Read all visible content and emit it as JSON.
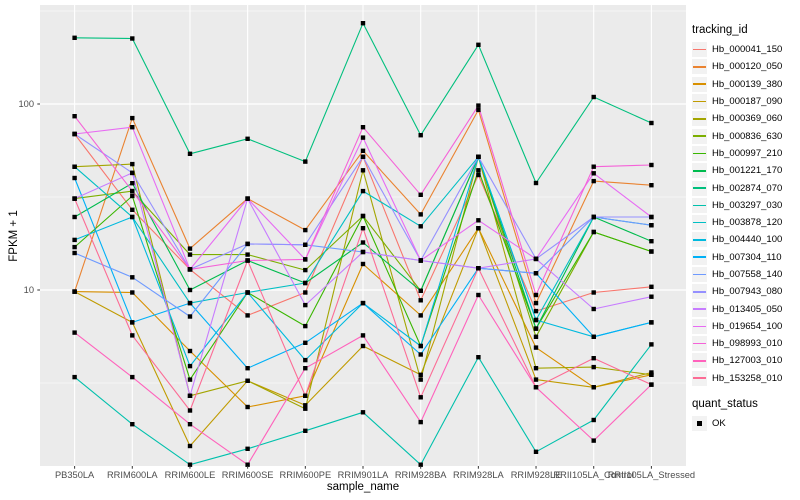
{
  "figure": {
    "x_axis_title": "sample_name",
    "y_axis_title": "FPKM + 1",
    "legend": {
      "color_title": "tracking_id",
      "shape_title": "quant_status",
      "shape_items": [
        {
          "label": "OK",
          "marker": "filled-black-square"
        }
      ]
    }
  },
  "style": {
    "background": "#FFFFFF",
    "panel_bg": "#EBEBEB",
    "grid_color": "#FFFFFF",
    "axis_text_color": "#4D4D4D",
    "tick_color": "#333333",
    "title_color": "#000000",
    "legend_key_bg": "#F2F2F2",
    "point_color": "#000000"
  },
  "chart_data": {
    "type": "line",
    "x_type": "categorical",
    "title": "",
    "xlabel": "sample_name",
    "ylabel": "FPKM + 1",
    "y_scale": "log10",
    "ylim": [
      1.1,
      340
    ],
    "y_ticks": [
      100,
      10
    ],
    "y_minor_gridlines": [
      316.2,
      31.62,
      3.162
    ],
    "grid": "on",
    "legend_position": "right",
    "point_marker": "filled-square-black",
    "categories": [
      "PB350LA",
      "RRIM600LA",
      "RRIM600LE",
      "RRIM600SE",
      "RRIM600PE",
      "RRIM901LA",
      "RRIM928BA",
      "RRIM928LA",
      "RRIM928LE",
      "RRII105LA_Control",
      "RRII105LA_Stressed"
    ],
    "series": [
      {
        "name": "Hb_000041_150",
        "color": "#F8766D",
        "values": [
          69,
          27,
          12.9,
          7.3,
          9.7,
          52,
          8.8,
          41.5,
          7.7,
          9.7,
          10.4
        ]
      },
      {
        "name": "Hb_000120_050",
        "color": "#EA8331",
        "values": [
          9.8,
          84,
          16.7,
          31,
          21,
          56,
          25.5,
          93,
          8.5,
          38.5,
          36.6
        ]
      },
      {
        "name": "Hb_000139_380",
        "color": "#D89000",
        "values": [
          9.8,
          9.7,
          4.7,
          2.35,
          2.7,
          13.8,
          7.3,
          21.5,
          4.9,
          3.0,
          3.5
        ]
      },
      {
        "name": "Hb_000187_090",
        "color": "#C09B00",
        "values": [
          9.8,
          6.7,
          1.45,
          3.25,
          2.4,
          5.0,
          3.5,
          21.5,
          3.3,
          3.0,
          3.6
        ]
      },
      {
        "name": "Hb_000369_060",
        "color": "#A3A500",
        "values": [
          46,
          47.5,
          2.7,
          3.25,
          2.3,
          44,
          3.3,
          52,
          3.8,
          3.85,
          3.5
        ]
      },
      {
        "name": "Hb_000836_630",
        "color": "#7CAE00",
        "values": [
          31,
          34,
          15.5,
          15.5,
          12.8,
          25,
          9.9,
          52,
          5.6,
          20.5,
          16.1
        ]
      },
      {
        "name": "Hb_000997_210",
        "color": "#39B600",
        "values": [
          17,
          32,
          3.3,
          9.7,
          6.4,
          25,
          5.0,
          44,
          6.2,
          20.5,
          16.1
        ]
      },
      {
        "name": "Hb_001221_170",
        "color": "#00BB4E",
        "values": [
          24.7,
          37.5,
          10,
          14.4,
          10.9,
          18,
          9.9,
          52,
          6.2,
          24.7,
          18.3
        ]
      },
      {
        "name": "Hb_002874_070",
        "color": "#00BF7D",
        "values": [
          227,
          225,
          54,
          65,
          49,
          272,
          68,
          208,
          37.6,
          109,
          79
        ]
      },
      {
        "name": "Hb_003297_030",
        "color": "#00C0AC",
        "values": [
          3.4,
          1.9,
          1.15,
          1.4,
          1.75,
          2.2,
          1.15,
          4.35,
          1.35,
          2.0,
          5.1
        ]
      },
      {
        "name": "Hb_003878_120",
        "color": "#00BFC4",
        "values": [
          46,
          24.7,
          8.5,
          9.7,
          10.9,
          34,
          22,
          52,
          6.9,
          24.7,
          22.3
        ]
      },
      {
        "name": "Hb_004440_100",
        "color": "#00BADE",
        "values": [
          18.6,
          24.7,
          3.9,
          9.7,
          4.2,
          8.5,
          5.0,
          52,
          6.9,
          5.6,
          6.7
        ]
      },
      {
        "name": "Hb_007304_110",
        "color": "#00B0F6",
        "values": [
          40,
          6.7,
          8.5,
          3.8,
          5.2,
          8.5,
          4.5,
          13.1,
          12.3,
          5.6,
          6.7
        ]
      },
      {
        "name": "Hb_007558_140",
        "color": "#6E9AFF",
        "values": [
          15.8,
          11.7,
          7.2,
          17.7,
          17.5,
          16,
          14.4,
          13.1,
          12.3,
          24.7,
          22.3
        ]
      },
      {
        "name": "Hb_007943_080",
        "color": "#9590FF",
        "values": [
          69,
          42.6,
          12.9,
          17.7,
          17.5,
          52,
          14.4,
          52,
          14.7,
          24.7,
          24.7
        ]
      },
      {
        "name": "Hb_013405_050",
        "color": "#C77CFF",
        "values": [
          31,
          42.6,
          2.7,
          31,
          8.3,
          16,
          14.4,
          13.1,
          14.7,
          7.9,
          9.2
        ]
      },
      {
        "name": "Hb_019654_100",
        "color": "#E76BF3",
        "values": [
          69,
          75,
          12.9,
          31,
          14.6,
          66,
          14.4,
          23.7,
          14.7,
          42.4,
          24.7
        ]
      },
      {
        "name": "Hb_098993_010",
        "color": "#F562D8",
        "values": [
          86,
          34,
          12.9,
          14.4,
          14.6,
          75,
          32.5,
          98,
          9.4,
          46,
          47
        ]
      },
      {
        "name": "Hb_127003_010",
        "color": "#FF62BC",
        "values": [
          5.9,
          3.4,
          1.9,
          1.15,
          3.8,
          5.7,
          1.95,
          9.4,
          3.0,
          1.55,
          3.1
        ]
      },
      {
        "name": "Hb_153258_010",
        "color": "#FC6C95",
        "values": [
          31,
          5.7,
          2.25,
          14.4,
          2.7,
          21.5,
          2.65,
          13.1,
          3.0,
          4.3,
          3.1
        ]
      }
    ]
  }
}
